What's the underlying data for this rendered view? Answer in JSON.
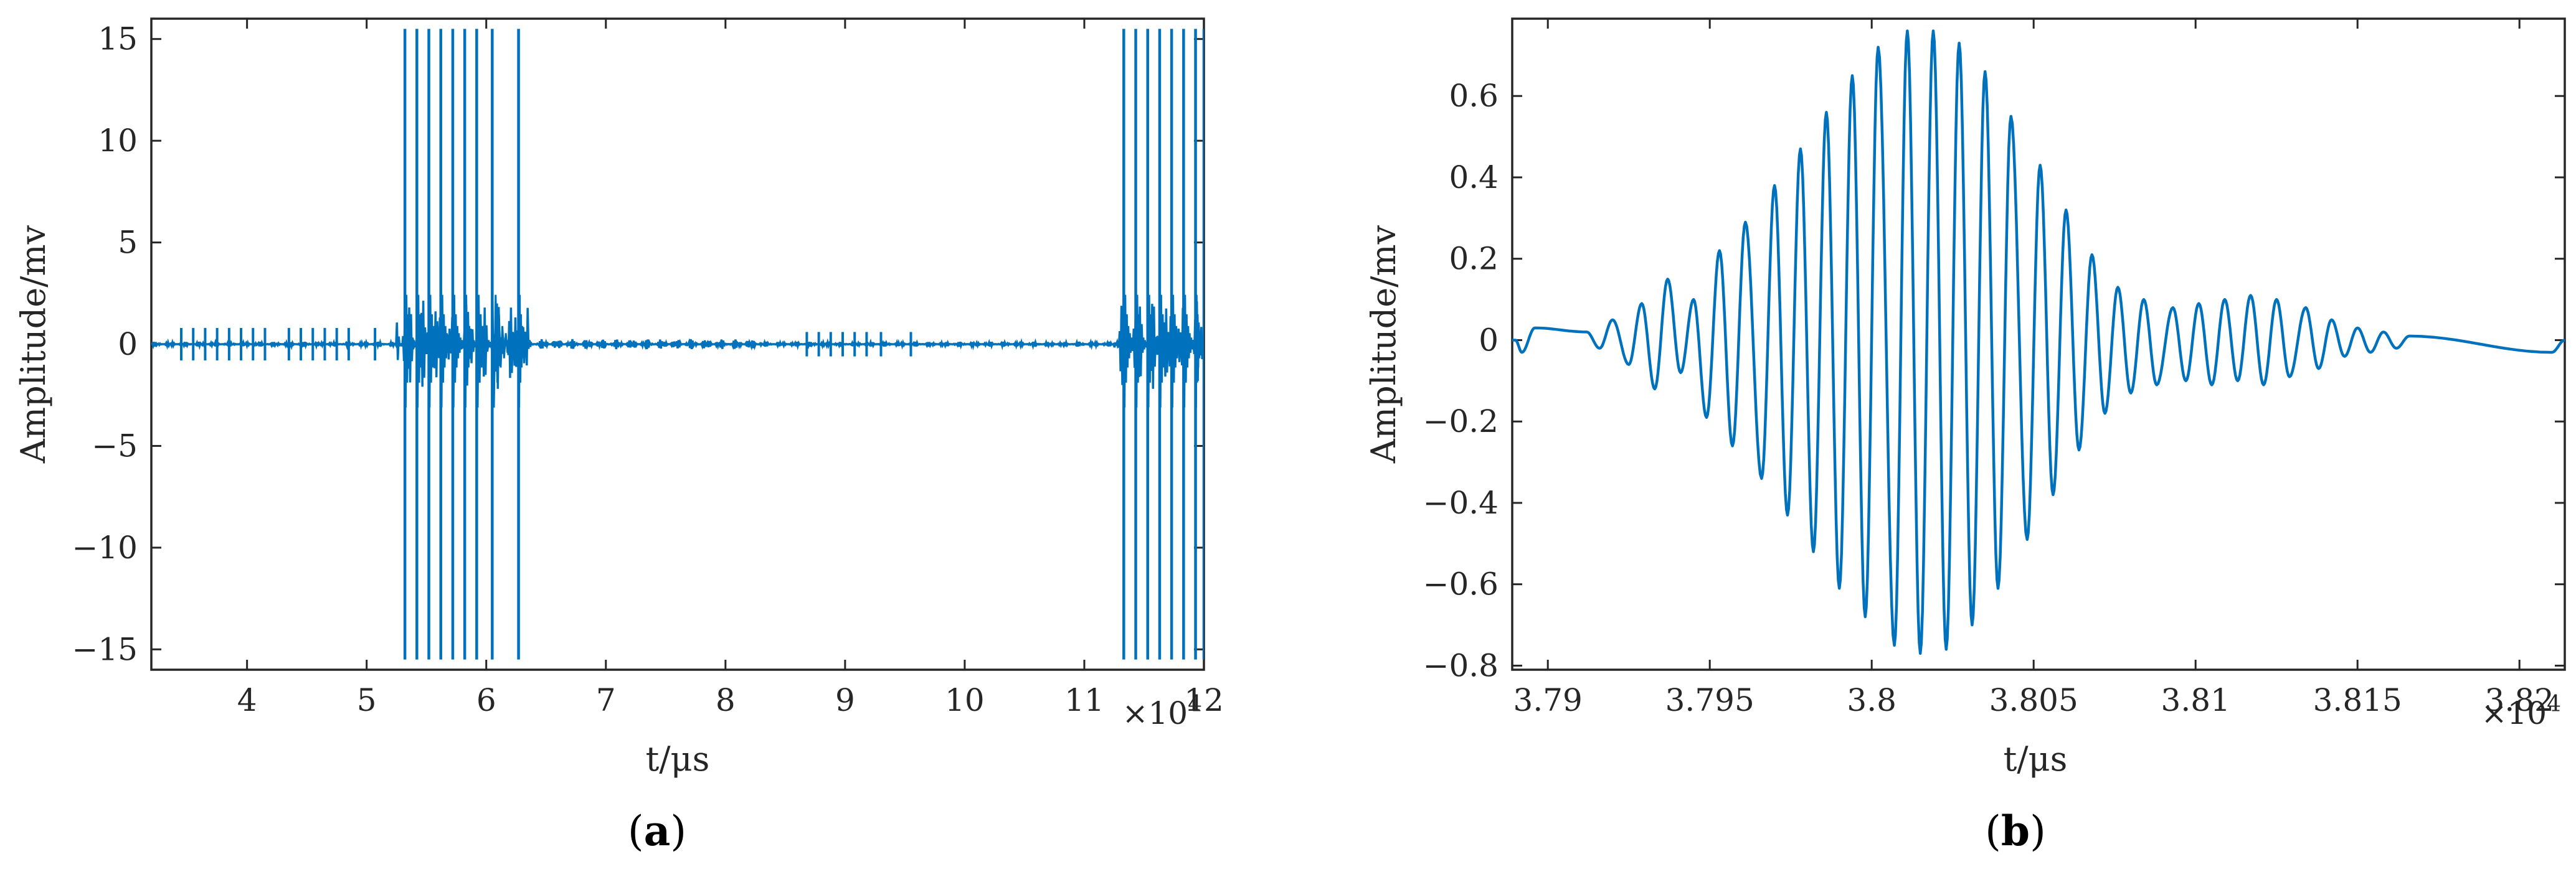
{
  "chart_data": [
    {
      "panel": "a",
      "type": "line",
      "panel_label": "a",
      "xlabel": "t/μs",
      "ylabel": "Amplitude/mv",
      "x_exponent_label": "×10",
      "x_exponent_power": "4",
      "xlim": [
        3.2,
        12.0
      ],
      "ylim": [
        -16,
        16
      ],
      "x_ticks": [
        4,
        5,
        6,
        7,
        8,
        9,
        10,
        11,
        12
      ],
      "x_tick_labels": [
        "4",
        "5",
        "6",
        "7",
        "8",
        "9",
        "10",
        "11",
        "12"
      ],
      "y_ticks": [
        15,
        10,
        5,
        0,
        -5,
        -10,
        -15
      ],
      "y_tick_labels": [
        "15",
        "10",
        "5",
        "0",
        "−5",
        "−10",
        "−15"
      ],
      "grid": false,
      "line_color": "#0072BD",
      "series": [
        {
          "baseline": 0,
          "small_bursts": [
            {
              "x": 3.45,
              "amp": 0.8
            },
            {
              "x": 3.55,
              "amp": 0.8
            },
            {
              "x": 3.65,
              "amp": 0.8
            },
            {
              "x": 3.75,
              "amp": 0.8
            },
            {
              "x": 3.85,
              "amp": 0.8
            },
            {
              "x": 3.95,
              "amp": 0.8
            },
            {
              "x": 4.05,
              "amp": 0.8
            },
            {
              "x": 4.15,
              "amp": 0.8
            },
            {
              "x": 4.35,
              "amp": 0.8
            },
            {
              "x": 4.45,
              "amp": 0.8
            },
            {
              "x": 4.55,
              "amp": 0.8
            },
            {
              "x": 4.65,
              "amp": 0.8
            },
            {
              "x": 4.75,
              "amp": 0.8
            },
            {
              "x": 4.85,
              "amp": 0.8
            },
            {
              "x": 5.07,
              "amp": 0.8
            },
            {
              "x": 8.68,
              "amp": 0.6
            },
            {
              "x": 8.78,
              "amp": 0.6
            },
            {
              "x": 8.88,
              "amp": 0.6
            },
            {
              "x": 8.98,
              "amp": 0.6
            },
            {
              "x": 9.08,
              "amp": 0.6
            },
            {
              "x": 9.18,
              "amp": 0.6
            },
            {
              "x": 9.3,
              "amp": 0.6
            },
            {
              "x": 9.55,
              "amp": 0.6
            }
          ],
          "saturated_spikes": [
            5.32,
            5.42,
            5.52,
            5.62,
            5.72,
            5.82,
            5.92,
            6.05,
            6.27,
            11.33,
            11.43,
            11.53,
            11.63,
            11.73,
            11.83,
            11.93,
            12.0
          ],
          "saturation_level": 15.5,
          "noisy_regions": [
            [
              5.25,
              6.35
            ],
            [
              11.25,
              12.0
            ]
          ]
        }
      ]
    },
    {
      "panel": "b",
      "type": "line",
      "panel_label": "b",
      "xlabel": "t/μs",
      "ylabel": "Amplitude/mv",
      "x_exponent_label": "×10",
      "x_exponent_power": "4",
      "xlim": [
        3.7889,
        3.8214
      ],
      "ylim": [
        -0.81,
        0.79
      ],
      "x_ticks": [
        3.79,
        3.795,
        3.8,
        3.805,
        3.81,
        3.815,
        3.82
      ],
      "x_tick_labels": [
        "3.79",
        "3.795",
        "3.8",
        "3.805",
        "3.81",
        "3.815",
        "3.82"
      ],
      "y_ticks": [
        0.6,
        0.4,
        0.2,
        0,
        -0.2,
        -0.4,
        -0.6,
        -0.8
      ],
      "y_tick_labels": [
        "0.6",
        "0.4",
        "0.2",
        "0",
        "−0.2",
        "−0.4",
        "−0.6",
        "−0.8"
      ],
      "grid": false,
      "line_color": "#0072BD",
      "series": [
        {
          "oscillation_period": 0.00082,
          "peaks": [
            {
              "x": 3.789,
              "y": 0.0
            },
            {
              "x": 3.7896,
              "y": 0.03
            },
            {
              "x": 3.7912,
              "y": 0.02
            },
            {
              "x": 3.792,
              "y": 0.05
            },
            {
              "x": 3.7929,
              "y": 0.09
            },
            {
              "x": 3.7937,
              "y": 0.15
            },
            {
              "x": 3.7945,
              "y": 0.1
            },
            {
              "x": 3.7953,
              "y": 0.22
            },
            {
              "x": 3.7961,
              "y": 0.29
            },
            {
              "x": 3.797,
              "y": 0.38
            },
            {
              "x": 3.7978,
              "y": 0.47
            },
            {
              "x": 3.7986,
              "y": 0.56
            },
            {
              "x": 3.7994,
              "y": 0.65
            },
            {
              "x": 3.8002,
              "y": 0.72
            },
            {
              "x": 3.8011,
              "y": 0.76
            },
            {
              "x": 3.8019,
              "y": 0.76
            },
            {
              "x": 3.8027,
              "y": 0.73
            },
            {
              "x": 3.8035,
              "y": 0.66
            },
            {
              "x": 3.8043,
              "y": 0.55
            },
            {
              "x": 3.8052,
              "y": 0.43
            },
            {
              "x": 3.806,
              "y": 0.32
            },
            {
              "x": 3.8068,
              "y": 0.21
            },
            {
              "x": 3.8076,
              "y": 0.13
            },
            {
              "x": 3.8084,
              "y": 0.1
            },
            {
              "x": 3.8093,
              "y": 0.08
            },
            {
              "x": 3.8101,
              "y": 0.09
            },
            {
              "x": 3.8109,
              "y": 0.1
            },
            {
              "x": 3.8117,
              "y": 0.11
            },
            {
              "x": 3.8125,
              "y": 0.1
            },
            {
              "x": 3.8134,
              "y": 0.08
            },
            {
              "x": 3.8142,
              "y": 0.05
            },
            {
              "x": 3.815,
              "y": 0.03
            },
            {
              "x": 3.8158,
              "y": 0.02
            },
            {
              "x": 3.8166,
              "y": 0.01
            }
          ],
          "troughs": [
            {
              "x": 3.7892,
              "y": -0.03
            },
            {
              "x": 3.7916,
              "y": -0.02
            },
            {
              "x": 3.7925,
              "y": -0.06
            },
            {
              "x": 3.7933,
              "y": -0.12
            },
            {
              "x": 3.7941,
              "y": -0.08
            },
            {
              "x": 3.7949,
              "y": -0.19
            },
            {
              "x": 3.7957,
              "y": -0.26
            },
            {
              "x": 3.7966,
              "y": -0.34
            },
            {
              "x": 3.7974,
              "y": -0.43
            },
            {
              "x": 3.7982,
              "y": -0.52
            },
            {
              "x": 3.799,
              "y": -0.61
            },
            {
              "x": 3.7998,
              "y": -0.68
            },
            {
              "x": 3.8007,
              "y": -0.75
            },
            {
              "x": 3.8015,
              "y": -0.77
            },
            {
              "x": 3.8023,
              "y": -0.76
            },
            {
              "x": 3.8031,
              "y": -0.7
            },
            {
              "x": 3.8039,
              "y": -0.61
            },
            {
              "x": 3.8048,
              "y": -0.49
            },
            {
              "x": 3.8056,
              "y": -0.38
            },
            {
              "x": 3.8064,
              "y": -0.27
            },
            {
              "x": 3.8072,
              "y": -0.18
            },
            {
              "x": 3.808,
              "y": -0.13
            },
            {
              "x": 3.8088,
              "y": -0.11
            },
            {
              "x": 3.8097,
              "y": -0.1
            },
            {
              "x": 3.8105,
              "y": -0.11
            },
            {
              "x": 3.8113,
              "y": -0.1
            },
            {
              "x": 3.8121,
              "y": -0.11
            },
            {
              "x": 3.8129,
              "y": -0.09
            },
            {
              "x": 3.8138,
              "y": -0.07
            },
            {
              "x": 3.8146,
              "y": -0.04
            },
            {
              "x": 3.8154,
              "y": -0.03
            },
            {
              "x": 3.8162,
              "y": -0.02
            },
            {
              "x": 3.821,
              "y": -0.03
            }
          ]
        }
      ]
    }
  ]
}
